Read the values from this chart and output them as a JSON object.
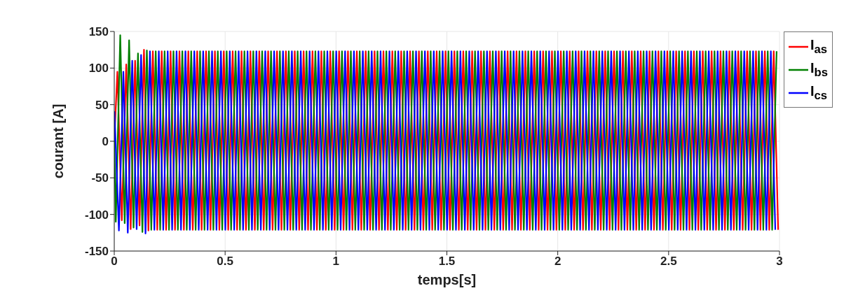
{
  "chart_data": {
    "type": "line",
    "xlabel": "temps[s]",
    "ylabel": "courant [A]",
    "xlim": [
      0,
      3
    ],
    "xticks": [
      0,
      0.5,
      1,
      1.5,
      2,
      2.5,
      3
    ],
    "ylim": [
      -150,
      150
    ],
    "yticks": [
      -150,
      -100,
      -50,
      0,
      50,
      100,
      150
    ],
    "grid": true,
    "legend": "top right",
    "series": [
      {
        "name": "I$_{as}$",
        "color": "#ff0000",
        "x": [
          0,
          0.014,
          0.034,
          0.054,
          0.074,
          0.094,
          0.114,
          0.134,
          0.154,
          0.174,
          0.194,
          0.214,
          0.234,
          0.254,
          0.274,
          0.294,
          0.314,
          0.334,
          0.354,
          0.374,
          0.394,
          0.414,
          0.434,
          0.454,
          0.474,
          0.494,
          0.514,
          0.534,
          0.554,
          0.574,
          0.594,
          0.614,
          0.634,
          0.654,
          0.674,
          0.694,
          0.714,
          0.734,
          0.754,
          0.774,
          0.794,
          0.814,
          0.834,
          0.854,
          0.874,
          0.894,
          0.914,
          0.934,
          0.954,
          0.974,
          0.994,
          1.014,
          1.034,
          1.054,
          1.074,
          1.094,
          1.114,
          1.134,
          1.154,
          1.174,
          1.194,
          1.214,
          1.234,
          1.254,
          1.274,
          1.294,
          1.314,
          1.334,
          1.354,
          1.374,
          1.394,
          1.414,
          1.434,
          1.454,
          1.474,
          1.494,
          1.514,
          1.534,
          1.554,
          1.574,
          1.594,
          1.614,
          1.634,
          1.654,
          1.674,
          1.694,
          1.714,
          1.734,
          1.754,
          1.774,
          1.794,
          1.814,
          1.834,
          1.854,
          1.874,
          1.894,
          1.914,
          1.934,
          1.954,
          1.974,
          1.994,
          2.014,
          2.034,
          2.054,
          2.074,
          2.094,
          2.114,
          2.134,
          2.154,
          2.174,
          2.194,
          2.214,
          2.234,
          2.254,
          2.274,
          2.294,
          2.314,
          2.334,
          2.354,
          2.374,
          2.394,
          2.414,
          2.434,
          2.454,
          2.474,
          2.494,
          2.514,
          2.534,
          2.554,
          2.574,
          2.594,
          2.614,
          2.634,
          2.654,
          2.674,
          2.694,
          2.714,
          2.734,
          2.754,
          2.774,
          2.794,
          2.814,
          2.834,
          2.854,
          2.874,
          2.894,
          2.914,
          2.934,
          2.954,
          2.974,
          2.994
        ],
        "values": [
          0,
          95,
          -108,
          105,
          -120,
          110,
          -115,
          125,
          -122,
          123,
          -121,
          123,
          -121,
          123,
          -121,
          123,
          -121,
          123,
          -121,
          123,
          -121,
          123,
          -121,
          123,
          -121,
          123,
          -121,
          123,
          -121,
          123,
          -121,
          123,
          -121,
          123,
          -121,
          123,
          -121,
          123,
          -121,
          123,
          -121,
          123,
          -121,
          123,
          -121,
          123,
          -121,
          123,
          -121,
          123,
          -121,
          123,
          -121,
          123,
          -121,
          123,
          -121,
          123,
          -121,
          123,
          -121,
          123,
          -121,
          123,
          -121,
          123,
          -121,
          123,
          -121,
          123,
          -121,
          123,
          -121,
          123,
          -121,
          123,
          -121,
          123,
          -121,
          123,
          -121,
          123,
          -121,
          123,
          -121,
          123,
          -121,
          123,
          -121,
          123,
          -121,
          123,
          -121,
          123,
          -121,
          123,
          -121,
          123,
          -121,
          123,
          -121,
          123,
          -121,
          123,
          -121,
          123,
          -121,
          123,
          -121,
          123,
          -121,
          123,
          -121,
          123,
          -121,
          123,
          -121,
          123,
          -121,
          123,
          -121,
          123,
          -121,
          123,
          -121,
          123,
          -121,
          123,
          -121,
          123,
          -121,
          123,
          -121,
          123,
          -121,
          123,
          -121,
          123,
          -121,
          123,
          -121,
          123,
          -121,
          123,
          -121,
          123,
          -121,
          123,
          -121,
          123,
          -121
        ]
      },
      {
        "name": "I$_{bs}$",
        "color": "#008000",
        "x": [
          0,
          0.007,
          0.027,
          0.047,
          0.067,
          0.087,
          0.107,
          0.127,
          0.147,
          0.167,
          0.187,
          0.207,
          0.227,
          0.247,
          0.267,
          0.287,
          0.307,
          0.327,
          0.347,
          0.367,
          0.387,
          0.407,
          0.427,
          0.447,
          0.467,
          0.487,
          0.507,
          0.527,
          0.547,
          0.567,
          0.587,
          0.607,
          0.627,
          0.647,
          0.667,
          0.687,
          0.707,
          0.727,
          0.747,
          0.767,
          0.787,
          0.807,
          0.827,
          0.847,
          0.867,
          0.887,
          0.907,
          0.927,
          0.947,
          0.967,
          0.987,
          1.007,
          1.027,
          1.047,
          1.067,
          1.087,
          1.107,
          1.127,
          1.147,
          1.167,
          1.187,
          1.207,
          1.227,
          1.247,
          1.267,
          1.287,
          1.307,
          1.327,
          1.347,
          1.367,
          1.387,
          1.407,
          1.427,
          1.447,
          1.467,
          1.487,
          1.507,
          1.527,
          1.547,
          1.567,
          1.587,
          1.607,
          1.627,
          1.647,
          1.667,
          1.687,
          1.707,
          1.727,
          1.747,
          1.767,
          1.787,
          1.807,
          1.827,
          1.847,
          1.867,
          1.887,
          1.907,
          1.927,
          1.947,
          1.967,
          1.987,
          2.007,
          2.027,
          2.047,
          2.067,
          2.087,
          2.107,
          2.127,
          2.147,
          2.167,
          2.187,
          2.207,
          2.227,
          2.247,
          2.267,
          2.287,
          2.307,
          2.327,
          2.347,
          2.367,
          2.387,
          2.407,
          2.427,
          2.447,
          2.467,
          2.487,
          2.507,
          2.527,
          2.547,
          2.567,
          2.587,
          2.607,
          2.627,
          2.647,
          2.667,
          2.687,
          2.707,
          2.727,
          2.747,
          2.767,
          2.787,
          2.807,
          2.827,
          2.847,
          2.867,
          2.887,
          2.907,
          2.927,
          2.947,
          2.967,
          2.987
        ],
        "values": [
          0,
          -110,
          145,
          -112,
          138,
          -118,
          120,
          -124,
          124,
          -121,
          123,
          -121,
          123,
          -121,
          123,
          -121,
          123,
          -121,
          123,
          -121,
          123,
          -121,
          123,
          -121,
          123,
          -121,
          123,
          -121,
          123,
          -121,
          123,
          -121,
          123,
          -121,
          123,
          -121,
          123,
          -121,
          123,
          -121,
          123,
          -121,
          123,
          -121,
          123,
          -121,
          123,
          -121,
          123,
          -121,
          123,
          -121,
          123,
          -121,
          123,
          -121,
          123,
          -121,
          123,
          -121,
          123,
          -121,
          123,
          -121,
          123,
          -121,
          123,
          -121,
          123,
          -121,
          123,
          -121,
          123,
          -121,
          123,
          -121,
          123,
          -121,
          123,
          -121,
          123,
          -121,
          123,
          -121,
          123,
          -121,
          123,
          -121,
          123,
          -121,
          123,
          -121,
          123,
          -121,
          123,
          -121,
          123,
          -121,
          123,
          -121,
          123,
          -121,
          123,
          -121,
          123,
          -121,
          123,
          -121,
          123,
          -121,
          123,
          -121,
          123,
          -121,
          123,
          -121,
          123,
          -121,
          123,
          -121,
          123,
          -121,
          123,
          -121,
          123,
          -121,
          123,
          -121,
          123,
          -121,
          123,
          -121,
          123,
          -121,
          123,
          -121,
          123,
          -121,
          123,
          -121,
          123,
          -121,
          123,
          -121,
          123,
          -121,
          123,
          -121,
          123,
          -121,
          123
        ]
      },
      {
        "name": "I$_{cs}$",
        "color": "#0000ff",
        "x": [
          0,
          0.001,
          0.021,
          0.041,
          0.061,
          0.081,
          0.101,
          0.121,
          0.141,
          0.161,
          0.181,
          0.201,
          0.221,
          0.241,
          0.261,
          0.281,
          0.301,
          0.321,
          0.341,
          0.361,
          0.381,
          0.401,
          0.421,
          0.441,
          0.461,
          0.481,
          0.501,
          0.521,
          0.541,
          0.561,
          0.581,
          0.601,
          0.621,
          0.641,
          0.661,
          0.681,
          0.701,
          0.721,
          0.741,
          0.761,
          0.781,
          0.801,
          0.821,
          0.841,
          0.861,
          0.881,
          0.901,
          0.921,
          0.941,
          0.961,
          0.981,
          1.001,
          1.021,
          1.041,
          1.061,
          1.081,
          1.101,
          1.121,
          1.141,
          1.161,
          1.181,
          1.201,
          1.221,
          1.241,
          1.261,
          1.281,
          1.301,
          1.321,
          1.341,
          1.361,
          1.381,
          1.401,
          1.421,
          1.441,
          1.461,
          1.481,
          1.501,
          1.521,
          1.541,
          1.561,
          1.581,
          1.601,
          1.621,
          1.641,
          1.661,
          1.681,
          1.701,
          1.721,
          1.741,
          1.761,
          1.781,
          1.801,
          1.821,
          1.841,
          1.861,
          1.881,
          1.901,
          1.921,
          1.941,
          1.961,
          1.981,
          2.001,
          2.021,
          2.041,
          2.061,
          2.081,
          2.101,
          2.121,
          2.141,
          2.161,
          2.181,
          2.201,
          2.221,
          2.241,
          2.261,
          2.281,
          2.301,
          2.321,
          2.341,
          2.361,
          2.381,
          2.401,
          2.421,
          2.441,
          2.461,
          2.481,
          2.501,
          2.521,
          2.541,
          2.561,
          2.581,
          2.601,
          2.621,
          2.641,
          2.661,
          2.681,
          2.701,
          2.721,
          2.741,
          2.761,
          2.781,
          2.801,
          2.821,
          2.841,
          2.861,
          2.881,
          2.901,
          2.921,
          2.941,
          2.961,
          2.981
        ],
        "values": [
          0,
          40,
          -122,
          95,
          -125,
          110,
          -120,
          118,
          -126,
          123,
          -121,
          123,
          -121,
          123,
          -121,
          123,
          -121,
          123,
          -121,
          123,
          -121,
          123,
          -121,
          123,
          -121,
          123,
          -121,
          123,
          -121,
          123,
          -121,
          123,
          -121,
          123,
          -121,
          123,
          -121,
          123,
          -121,
          123,
          -121,
          123,
          -121,
          123,
          -121,
          123,
          -121,
          123,
          -121,
          123,
          -121,
          123,
          -121,
          123,
          -121,
          123,
          -121,
          123,
          -121,
          123,
          -121,
          123,
          -121,
          123,
          -121,
          123,
          -121,
          123,
          -121,
          123,
          -121,
          123,
          -121,
          123,
          -121,
          123,
          -121,
          123,
          -121,
          123,
          -121,
          123,
          -121,
          123,
          -121,
          123,
          -121,
          123,
          -121,
          123,
          -121,
          123,
          -121,
          123,
          -121,
          123,
          -121,
          123,
          -121,
          123,
          -121,
          123,
          -121,
          123,
          -121,
          123,
          -121,
          123,
          -121,
          123,
          -121,
          123,
          -121,
          123,
          -121,
          123,
          -121,
          123,
          -121,
          123,
          -121,
          123,
          -121,
          123,
          -121,
          123,
          -121,
          123,
          -121,
          123,
          -121,
          123,
          -121,
          123,
          -121,
          123,
          -121,
          123,
          -121,
          123,
          -121,
          123,
          -121,
          123,
          -121,
          123,
          -121,
          123,
          -121,
          123,
          -121
        ]
      }
    ]
  }
}
